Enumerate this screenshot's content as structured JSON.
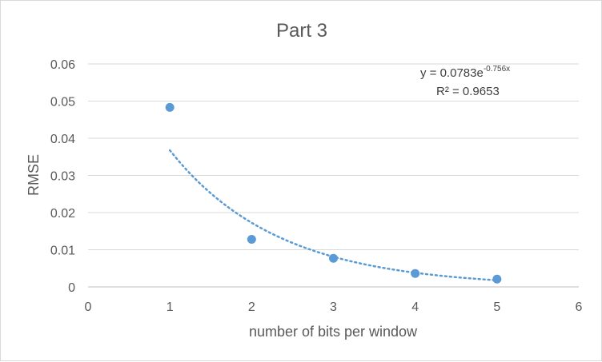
{
  "chart_data": {
    "type": "scatter",
    "title": "Part 3",
    "xlabel": "number of bits per window",
    "ylabel": "RMSE",
    "xlim": [
      0,
      6
    ],
    "ylim": [
      0,
      0.06
    ],
    "x_ticks": [
      0,
      1,
      2,
      3,
      4,
      5,
      6
    ],
    "y_ticks": [
      0,
      0.01,
      0.02,
      0.03,
      0.04,
      0.05,
      0.06
    ],
    "x_tick_labels": [
      "0",
      "1",
      "2",
      "3",
      "4",
      "5",
      "6"
    ],
    "y_tick_labels": [
      "0",
      "0.01",
      "0.02",
      "0.03",
      "0.04",
      "0.05",
      "0.06"
    ],
    "grid": "horizontal",
    "series": [
      {
        "x": [
          1,
          2,
          3,
          4,
          5
        ],
        "y": [
          0.0483,
          0.0128,
          0.0077,
          0.0036,
          0.0021
        ],
        "color": "#5b9bd5"
      }
    ],
    "trendline": {
      "kind": "exponential",
      "a": 0.0783,
      "b": -0.756,
      "x_range": [
        1,
        5
      ],
      "style": "dotted",
      "color": "#5b9bd5",
      "equation_prefix": "y = 0.0783e",
      "equation_exponent": "-0.756x",
      "r_squared": "R² = 0.9653",
      "annotation_position": "top-right"
    }
  }
}
